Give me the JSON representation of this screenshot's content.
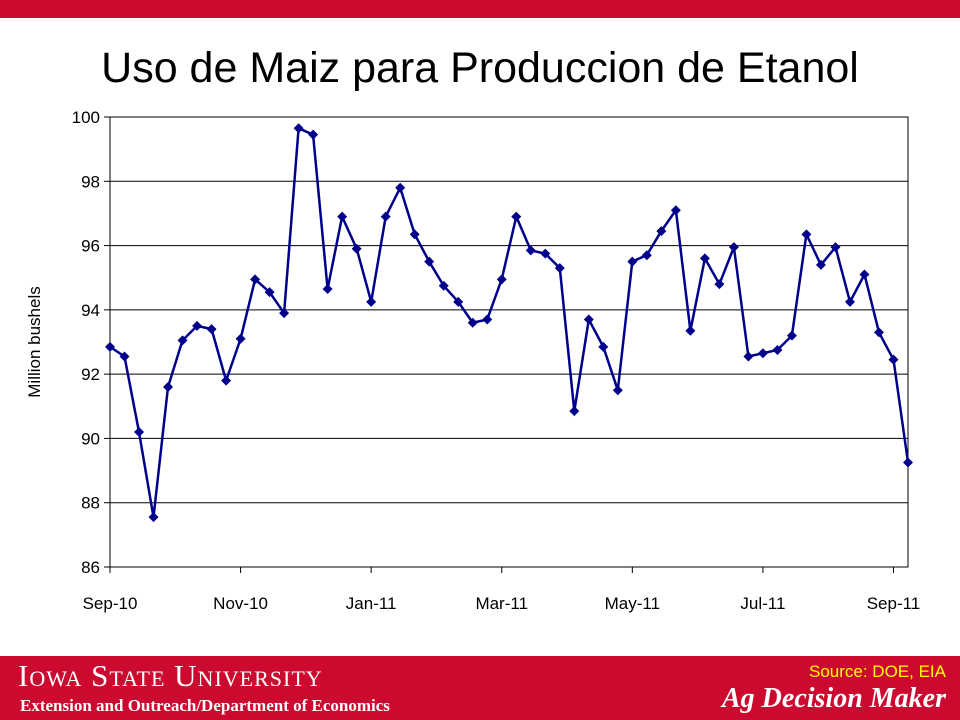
{
  "header": {
    "title": "Uso de Maiz para Produccion de Etanol"
  },
  "chart_data": {
    "type": "line",
    "ylabel": "Million bushels",
    "ylim": [
      86,
      100
    ],
    "yticks": [
      86,
      88,
      90,
      92,
      94,
      96,
      98,
      100
    ],
    "x_tick_labels": [
      "Sep-10",
      "Nov-10",
      "Jan-11",
      "Mar-11",
      "May-11",
      "Jul-11",
      "Sep-11"
    ],
    "grid": true,
    "colors": {
      "line": "#00008b",
      "marker": "#00008b"
    },
    "series": [
      {
        "values": [
          92.85,
          92.55,
          90.2,
          87.55,
          91.6,
          93.05,
          93.5,
          93.4,
          91.8,
          93.1,
          94.95,
          94.55,
          93.9,
          99.65,
          99.45,
          94.65,
          96.9,
          95.9,
          94.25,
          96.9,
          97.8,
          96.35,
          95.5,
          94.75,
          94.25,
          93.6,
          93.7,
          94.95,
          96.9,
          95.85,
          95.75,
          95.3,
          90.85,
          93.7,
          92.85,
          91.5,
          95.5,
          95.7,
          96.45,
          97.1,
          93.35,
          95.6,
          94.8,
          95.95,
          92.55,
          92.65,
          92.75,
          93.2,
          96.35,
          95.4,
          95.95,
          94.25,
          95.1,
          93.3,
          92.45,
          89.25
        ]
      }
    ]
  },
  "footer": {
    "university": "Iowa State University",
    "department": "Extension and Outreach/Department of Economics",
    "source": "Source: DOE, EIA",
    "brand": "Ag Decision Maker"
  }
}
